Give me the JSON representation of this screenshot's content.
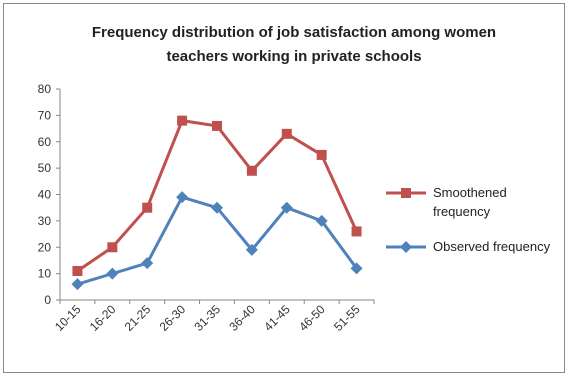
{
  "chart_data": {
    "type": "line",
    "title_lines": [
      "Frequency distribution of job satisfaction among women",
      "teachers working in private schools"
    ],
    "categories": [
      "10-15",
      "16-20",
      "21-25",
      "26-30",
      "31-35",
      "36-40",
      "41-45",
      "46-50",
      "51-55"
    ],
    "ylim": [
      0,
      80
    ],
    "yticks": [
      0,
      10,
      20,
      30,
      40,
      50,
      60,
      70,
      80
    ],
    "xlabel": "",
    "ylabel": "",
    "grid": false,
    "legend_position": "right",
    "series": [
      {
        "name": "Smoothened frequency",
        "legend_lines": [
          "Smoothened",
          "frequency"
        ],
        "color": "#c0504d",
        "marker": "square",
        "values": [
          11,
          20,
          35,
          68,
          66,
          49,
          63,
          55,
          26
        ]
      },
      {
        "name": "Observed frequency",
        "legend_lines": [
          "Observed frequency"
        ],
        "color": "#4f81bd",
        "marker": "diamond",
        "values": [
          6,
          10,
          14,
          39,
          35,
          19,
          35,
          30,
          12
        ]
      }
    ]
  }
}
